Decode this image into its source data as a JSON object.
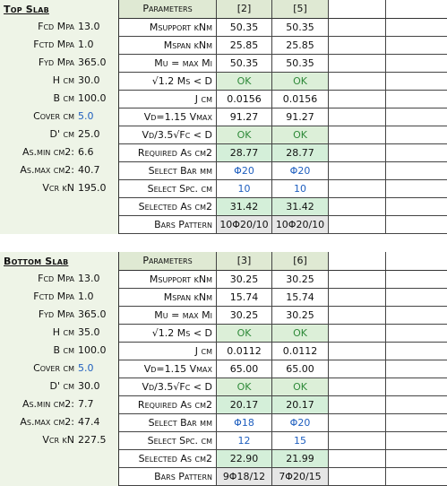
{
  "top": {
    "title": "Top Slab",
    "left": [
      {
        "label": "Fcd Mpa",
        "value": "13.0"
      },
      {
        "label": "Fctd Mpa",
        "value": "1.0"
      },
      {
        "label": "Fyd Mpa",
        "value": "365.0"
      },
      {
        "label": "H cm",
        "value": "30.0"
      },
      {
        "label": "B cm",
        "value": "100.0"
      },
      {
        "label": "Cover cm",
        "value": "5.0"
      },
      {
        "label": "D' cm",
        "value": "25.0"
      },
      {
        "label": "As.min cm2:",
        "value": "6.6"
      },
      {
        "label": "As.max cm2:",
        "value": "40.7"
      },
      {
        "label": "Vcr kN",
        "value": "195.0"
      }
    ],
    "header": {
      "label": "Parameters",
      "col1": "[2]",
      "col2": "[5]"
    },
    "rows": [
      {
        "label": "Msupport kNm",
        "v1": "50.35",
        "v2": "50.35"
      },
      {
        "label": "Mspan kNm",
        "v1": "25.85",
        "v2": "25.85"
      },
      {
        "label": "Mu = max Mi",
        "v1": "50.35",
        "v2": "50.35"
      },
      {
        "label": "√1.2 Ms < D",
        "v1": "OK",
        "v2": "OK"
      },
      {
        "label": "J cm",
        "v1": "0.0156",
        "v2": "0.0156"
      },
      {
        "label": "Vd=1.15 Vmax",
        "v1": "91.27",
        "v2": "91.27"
      },
      {
        "label": "Vd/3.5√Fc < D",
        "v1": "OK",
        "v2": "OK"
      },
      {
        "label": "Required As cm2",
        "v1": "28.77",
        "v2": "28.77"
      },
      {
        "label": "Select Bar mm",
        "v1": "Φ20",
        "v2": "Φ20"
      },
      {
        "label": "Select Spc. cm",
        "v1": "10",
        "v2": "10"
      },
      {
        "label": "Selected As cm2",
        "v1": "31.42",
        "v2": "31.42"
      },
      {
        "label": "Bars Pattern",
        "v1": "10Φ20/10",
        "v2": "10Φ20/10"
      }
    ]
  },
  "bottom": {
    "title": "Bottom Slab",
    "left": [
      {
        "label": "Fcd Mpa",
        "value": "13.0"
      },
      {
        "label": "Fctd Mpa",
        "value": "1.0"
      },
      {
        "label": "Fyd Mpa",
        "value": "365.0"
      },
      {
        "label": "H cm",
        "value": "35.0"
      },
      {
        "label": "B cm",
        "value": "100.0"
      },
      {
        "label": "Cover cm",
        "value": "5.0"
      },
      {
        "label": "D' cm",
        "value": "30.0"
      },
      {
        "label": "As.min cm2:",
        "value": "7.7"
      },
      {
        "label": "As.max cm2:",
        "value": "47.4"
      },
      {
        "label": "Vcr kN",
        "value": "227.5"
      }
    ],
    "header": {
      "label": "Parameters",
      "col1": "[3]",
      "col2": "[6]"
    },
    "rows": [
      {
        "label": "Msupport kNm",
        "v1": "30.25",
        "v2": "30.25"
      },
      {
        "label": "Mspan kNm",
        "v1": "15.74",
        "v2": "15.74"
      },
      {
        "label": "Mu = max Mi",
        "v1": "30.25",
        "v2": "30.25"
      },
      {
        "label": "√1.2 Ms < D",
        "v1": "OK",
        "v2": "OK"
      },
      {
        "label": "J cm",
        "v1": "0.0112",
        "v2": "0.0112"
      },
      {
        "label": "Vd=1.15 Vmax",
        "v1": "65.00",
        "v2": "65.00"
      },
      {
        "label": "Vd/3.5√Fc < D",
        "v1": "OK",
        "v2": "OK"
      },
      {
        "label": "Required As cm2",
        "v1": "20.17",
        "v2": "20.17"
      },
      {
        "label": "Select Bar mm",
        "v1": "Φ18",
        "v2": "Φ20"
      },
      {
        "label": "Select Spc. cm",
        "v1": "12",
        "v2": "15"
      },
      {
        "label": "Selected As cm2",
        "v1": "22.90",
        "v2": "21.99"
      },
      {
        "label": "Bars Pattern",
        "v1": "9Φ18/12",
        "v2": "7Φ20/15"
      }
    ]
  },
  "colors": {
    "left_panel_bg": "#eef4e7",
    "header_bg": "#dfe9d3",
    "green_bg": "#d4efd9",
    "ok_text": "#2f8a3a",
    "blue_text": "#1f5fbf",
    "pattern_bg": "#e6e6e6"
  }
}
